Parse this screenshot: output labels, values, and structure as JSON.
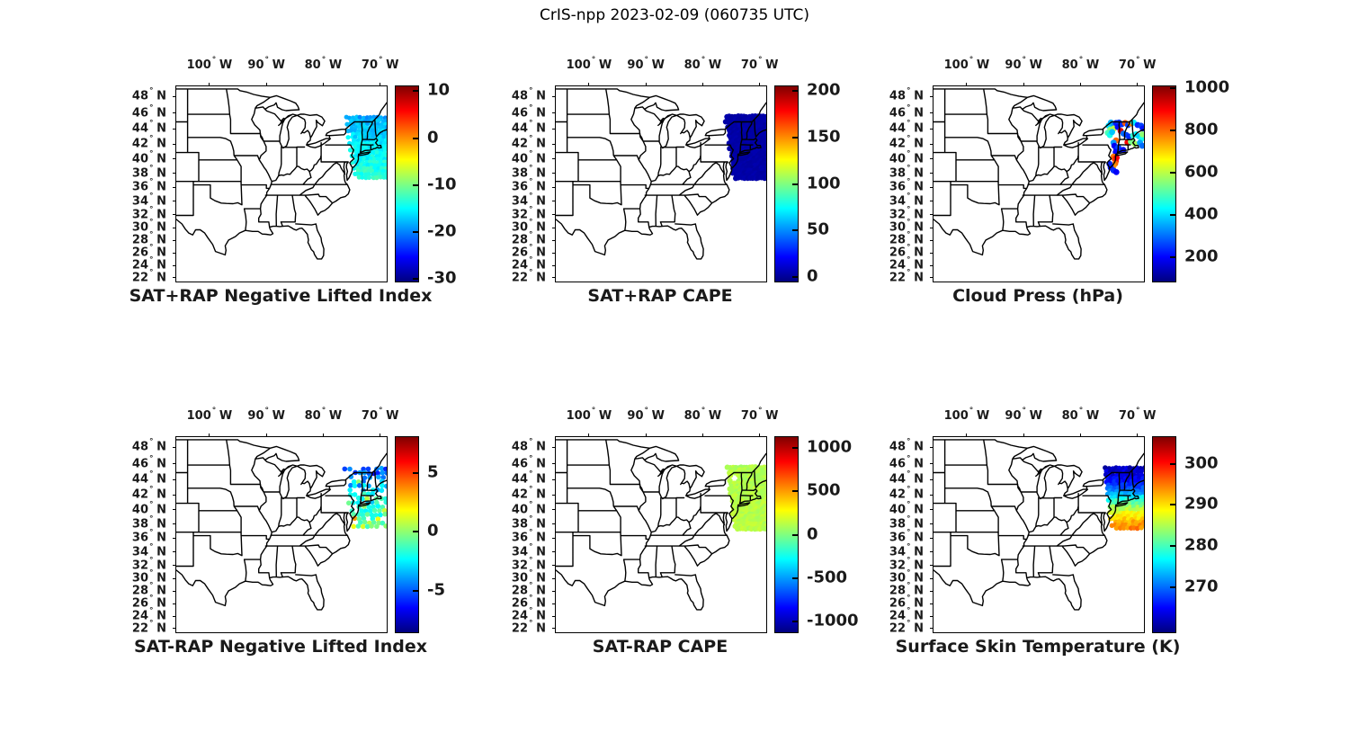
{
  "figure": {
    "title": "CrIS-npp 2023-02-09 (060735 UTC)",
    "background": "#ffffff"
  },
  "axes": {
    "extent": {
      "lon_min": -106,
      "lon_max": -69,
      "lat_min": 21.5,
      "lat_max": 49.3
    },
    "lon_ticks": [
      {
        "lon": -100,
        "label": "100",
        "hemi": "W"
      },
      {
        "lon": -90,
        "label": "90",
        "hemi": "W"
      },
      {
        "lon": -80,
        "label": "80",
        "hemi": "W"
      },
      {
        "lon": -70,
        "label": "70",
        "hemi": "W"
      }
    ],
    "lat_ticks": [
      {
        "lat": 48,
        "label": "48",
        "hemi": "N"
      },
      {
        "lat": 46,
        "label": "46",
        "hemi": "N"
      },
      {
        "lat": 44,
        "label": "44",
        "hemi": "N"
      },
      {
        "lat": 42,
        "label": "42",
        "hemi": "N"
      },
      {
        "lat": 40,
        "label": "40",
        "hemi": "N"
      },
      {
        "lat": 38,
        "label": "38",
        "hemi": "N"
      },
      {
        "lat": 36,
        "label": "36",
        "hemi": "N"
      },
      {
        "lat": 34,
        "label": "34",
        "hemi": "N"
      },
      {
        "lat": 32,
        "label": "32",
        "hemi": "N"
      },
      {
        "lat": 30,
        "label": "30",
        "hemi": "N"
      },
      {
        "lat": 28,
        "label": "28",
        "hemi": "N"
      },
      {
        "lat": 26,
        "label": "26",
        "hemi": "N"
      },
      {
        "lat": 24,
        "label": "24",
        "hemi": "N"
      },
      {
        "lat": 22,
        "label": "22",
        "hemi": "N"
      }
    ]
  },
  "chart_data": [
    {
      "type": "scatter",
      "title": "SAT+RAP Negative Lifted Index",
      "colorbar": {
        "colormap": "jet",
        "vmin": -30.5,
        "vmax": 11,
        "ticks": [
          {
            "value": 10,
            "label": "10"
          },
          {
            "value": 0,
            "label": "0"
          },
          {
            "value": -10,
            "label": "-10"
          },
          {
            "value": -20,
            "label": "-20"
          },
          {
            "value": -30,
            "label": "-30"
          }
        ]
      },
      "swath": {
        "seed": 11,
        "lat_min": 37.35,
        "lat_max": 45.55,
        "lon_max": -68.85,
        "left_edge": [
          [
            45.55,
            -75.9
          ],
          [
            37.35,
            -74.3
          ]
        ],
        "step_lon": 0.62,
        "step_lat": 0.42,
        "dot_radius": 2.6,
        "value_anchors": [
          [
            45.55,
            -18.5
          ],
          [
            42,
            -15.5
          ],
          [
            37.35,
            -13
          ]
        ],
        "noise": 1.6
      }
    },
    {
      "type": "scatter",
      "title": "SAT+RAP CAPE",
      "colorbar": {
        "colormap": "jet",
        "vmin": -5,
        "vmax": 205,
        "ticks": [
          {
            "value": 200,
            "label": "200"
          },
          {
            "value": 150,
            "label": "150"
          },
          {
            "value": 100,
            "label": "100"
          },
          {
            "value": 50,
            "label": "50"
          },
          {
            "value": 0,
            "label": "0"
          }
        ]
      },
      "swath": {
        "seed": 22,
        "lat_min": 37.3,
        "lat_max": 45.65,
        "lon_max": -68.85,
        "left_edge": [
          [
            45.65,
            -75.9
          ],
          [
            37.3,
            -74.4
          ]
        ],
        "step_lon": 0.5,
        "step_lat": 0.34,
        "dot_radius": 3.1,
        "value_anchors": [
          [
            45.65,
            3
          ],
          [
            37.3,
            3
          ]
        ],
        "noise": 2
      }
    },
    {
      "type": "scatter",
      "title": "Cloud Press (hPa)",
      "colorbar": {
        "colormap": "jet",
        "vmin": 86,
        "vmax": 1010,
        "ticks": [
          {
            "value": 1000,
            "label": "1000"
          },
          {
            "value": 800,
            "label": "800"
          },
          {
            "value": 600,
            "label": "600"
          },
          {
            "value": 400,
            "label": "400"
          },
          {
            "value": 200,
            "label": "200"
          }
        ]
      },
      "dot_radius": 3.4,
      "points": [
        [
          -75.2,
          44.5,
          400
        ],
        [
          -74.8,
          44.9,
          360
        ],
        [
          -74.2,
          44.6,
          330
        ],
        [
          -74.9,
          44.0,
          560
        ],
        [
          -74.3,
          44.15,
          600
        ],
        [
          -75.35,
          43.6,
          500
        ],
        [
          -75.0,
          43.3,
          450
        ],
        [
          -74.6,
          43.7,
          380
        ],
        [
          -73.9,
          44.85,
          230
        ],
        [
          -73.4,
          44.9,
          250
        ],
        [
          -73.6,
          44.35,
          210
        ],
        [
          -72.9,
          44.7,
          240
        ],
        [
          -72.3,
          44.85,
          820
        ],
        [
          -71.8,
          44.6,
          260
        ],
        [
          -71.3,
          44.8,
          780
        ],
        [
          -70.8,
          44.9,
          420
        ],
        [
          -70.1,
          44.6,
          240
        ],
        [
          -69.5,
          44.5,
          260
        ],
        [
          -69.2,
          44.15,
          220
        ],
        [
          -73.1,
          43.85,
          930
        ],
        [
          -72.6,
          43.5,
          300
        ],
        [
          -72.1,
          43.3,
          260
        ],
        [
          -71.6,
          43.1,
          240
        ],
        [
          -70.9,
          43.25,
          480
        ],
        [
          -70.4,
          43.4,
          430
        ],
        [
          -69.9,
          43.15,
          390
        ],
        [
          -69.4,
          42.85,
          450
        ],
        [
          -69.25,
          43.4,
          560
        ],
        [
          -71.9,
          42.35,
          900
        ],
        [
          -71.3,
          42.45,
          540
        ],
        [
          -70.6,
          42.15,
          580
        ],
        [
          -69.7,
          42.3,
          350
        ],
        [
          -73.9,
          42.6,
          800
        ],
        [
          -74.35,
          42.3,
          340
        ],
        [
          -74.2,
          41.9,
          190
        ],
        [
          -73.85,
          41.45,
          220
        ],
        [
          -73.5,
          41.7,
          260
        ],
        [
          -73.95,
          41.05,
          200
        ],
        [
          -73.25,
          41.3,
          240
        ],
        [
          -72.65,
          41.35,
          210
        ],
        [
          -74.35,
          40.45,
          790
        ],
        [
          -74.15,
          40.15,
          830
        ],
        [
          -73.95,
          39.85,
          860
        ],
        [
          -74.05,
          39.5,
          800
        ],
        [
          -74.35,
          39.2,
          760
        ],
        [
          -73.8,
          40.3,
          900
        ],
        [
          -74.85,
          38.95,
          210
        ],
        [
          -74.35,
          38.55,
          240
        ],
        [
          -73.85,
          38.3,
          195
        ],
        [
          -75.05,
          39.45,
          230
        ],
        [
          -69.3,
          41.9,
          300
        ]
      ]
    },
    {
      "type": "scatter",
      "title": "SAT-RAP Negative Lifted Index",
      "colorbar": {
        "colormap": "jet",
        "vmin": -8.5,
        "vmax": 8,
        "ticks": [
          {
            "value": 5,
            "label": "5"
          },
          {
            "value": 0,
            "label": "0"
          },
          {
            "value": -5,
            "label": "-5"
          }
        ]
      },
      "swath": {
        "seed": 44,
        "lat_min": 37.4,
        "lat_max": 45.5,
        "lon_max": -68.85,
        "left_edge": [
          [
            45.5,
            -76.1
          ],
          [
            37.4,
            -74.6
          ]
        ],
        "step_lon": 0.8,
        "step_lat": 0.55,
        "dot_radius": 2.8,
        "dropout": 0.22,
        "value_anchors": [
          [
            45.5,
            -5.2
          ],
          [
            43,
            -3.2
          ],
          [
            41,
            -1.8
          ],
          [
            39,
            -0.6
          ],
          [
            37.4,
            0.2
          ]
        ],
        "noise": 1.6,
        "outlier": {
          "frac": 0.1,
          "delta": 2.8
        }
      }
    },
    {
      "type": "scatter",
      "title": "SAT-RAP CAPE",
      "colorbar": {
        "colormap": "jet",
        "vmin": -1120,
        "vmax": 1120,
        "ticks": [
          {
            "value": 1000,
            "label": "1000"
          },
          {
            "value": 500,
            "label": "500"
          },
          {
            "value": 0,
            "label": "0"
          },
          {
            "value": -500,
            "label": "-500"
          },
          {
            "value": -1000,
            "label": "-1000"
          }
        ]
      },
      "swath": {
        "seed": 55,
        "lat_min": 37.35,
        "lat_max": 45.65,
        "lon_max": -68.85,
        "left_edge": [
          [
            45.65,
            -75.6
          ],
          [
            37.35,
            -74.3
          ]
        ],
        "step_lon": 0.5,
        "step_lat": 0.34,
        "dot_radius": 3.1,
        "notch": {
          "lon": -74.6,
          "lat": 44.25,
          "r": 0.8
        },
        "value_anchors": [
          [
            45.65,
            110
          ],
          [
            37.35,
            130
          ]
        ],
        "noise": 45
      }
    },
    {
      "type": "scatter",
      "title": "Surface Skin Temperature (K)",
      "colorbar": {
        "colormap": "jet",
        "vmin": 259,
        "vmax": 306.5,
        "ticks": [
          {
            "value": 300,
            "label": "300"
          },
          {
            "value": 290,
            "label": "290"
          },
          {
            "value": 280,
            "label": "280"
          },
          {
            "value": 270,
            "label": "270"
          }
        ]
      },
      "swath": {
        "seed": 66,
        "lat_min": 37.3,
        "lat_max": 45.55,
        "lon_max": -68.85,
        "left_edge": [
          [
            45.55,
            -75.9
          ],
          [
            37.3,
            -74.3
          ]
        ],
        "step_lon": 0.62,
        "step_lat": 0.42,
        "dot_radius": 2.8,
        "value_anchors": [
          [
            45.55,
            262
          ],
          [
            44,
            265
          ],
          [
            42.5,
            271
          ],
          [
            41.5,
            278
          ],
          [
            40.5,
            284
          ],
          [
            39.5,
            288.5
          ],
          [
            38.5,
            292
          ],
          [
            37.3,
            295
          ]
        ],
        "noise": 1.8
      }
    }
  ]
}
